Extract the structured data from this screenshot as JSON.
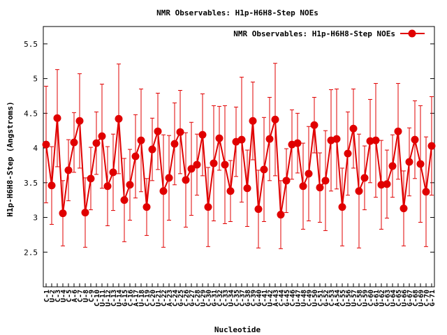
{
  "chart_data": {
    "type": "line",
    "title": "NMR Observables: H1p-H6H8-Step NOEs",
    "xlabel": "Nucleotide",
    "ylabel": "H1p-H6H8-Step (Angstroms)",
    "legend": {
      "label": "NMR Observables: H1p-H6H8-Step NOEs",
      "position": "top-right"
    },
    "ylim": [
      2.0,
      5.75
    ],
    "yticks": [
      2.5,
      3,
      3.5,
      4,
      4.5,
      5,
      5.5
    ],
    "ytick_labels": [
      "2.5",
      "3",
      "3.5",
      "4",
      "4.5",
      "5",
      "5.5"
    ],
    "grid": false,
    "color": "#e00000",
    "categories": [
      "C-1",
      "U-2",
      "C-3",
      "U-4",
      "C-5",
      "A-6",
      "C-7",
      "U-8",
      "C-9",
      "C-10",
      "U-11",
      "U-12",
      "C-13",
      "U-14",
      "G-15",
      "C-16",
      "A-17",
      "U-18",
      "C-19",
      "C-20",
      "U-21",
      "C-22",
      "A-23",
      "C-24",
      "G-25",
      "C-26",
      "G-27",
      "C-28",
      "U-29",
      "C-30",
      "G-31",
      "C-32",
      "C-33",
      "U-34",
      "C-35",
      "C-37",
      "G-38",
      "C-39",
      "G-40",
      "C-41",
      "U-42",
      "A-43",
      "C-44",
      "G-45",
      "C-46",
      "U-47",
      "U-48",
      "C-49",
      "U-50",
      "C-51",
      "G-52",
      "C-53",
      "A-54",
      "C-55",
      "U-56",
      "U-57",
      "C-58",
      "U-59",
      "C-60",
      "G-61",
      "U-62",
      "C-63",
      "U-64",
      "C-65",
      "U-66",
      "G-67",
      "C-68",
      "U-69",
      "C-70",
      "G-71"
    ],
    "series": [
      {
        "values": [
          4.05,
          3.46,
          4.43,
          3.06,
          3.68,
          4.08,
          4.39,
          3.07,
          3.56,
          4.07,
          4.17,
          3.45,
          3.65,
          4.42,
          3.25,
          3.47,
          3.88,
          4.11,
          3.15,
          3.98,
          4.24,
          3.38,
          3.57,
          4.06,
          4.23,
          3.54,
          3.7,
          3.76,
          4.19,
          3.15,
          3.78,
          4.14,
          3.76,
          3.38,
          4.09,
          4.12,
          3.42,
          4.39,
          3.12,
          3.69,
          4.13,
          4.41,
          3.04,
          3.53,
          4.05,
          4.07,
          3.45,
          3.63,
          4.33,
          3.43,
          3.53,
          4.11,
          4.13,
          3.15,
          3.92,
          4.28,
          3.38,
          3.57,
          4.1,
          4.11,
          3.47,
          3.48,
          3.74,
          4.24,
          3.13,
          3.8,
          4.12,
          3.77,
          3.37,
          4.03
        ],
        "errors": [
          0.84,
          0.56,
          0.7,
          0.47,
          0.44,
          0.43,
          0.68,
          0.5,
          0.45,
          0.45,
          0.75,
          0.57,
          0.55,
          0.79,
          0.6,
          0.51,
          0.6,
          0.74,
          0.41,
          0.45,
          0.55,
          0.81,
          0.61,
          0.59,
          0.6,
          0.68,
          0.67,
          0.44,
          0.59,
          0.57,
          0.83,
          0.46,
          0.85,
          0.44,
          0.5,
          0.9,
          0.55,
          0.56,
          0.56,
          0.75,
          0.6,
          0.81,
          0.49,
          0.46,
          0.5,
          0.43,
          0.62,
          0.68,
          0.4,
          0.5,
          0.72,
          0.73,
          0.72,
          0.56,
          0.6,
          0.57,
          0.82,
          0.46,
          0.6,
          0.82,
          0.64,
          0.49,
          0.45,
          0.69,
          0.54,
          0.49,
          0.56,
          0.84,
          0.79,
          0.71
        ]
      }
    ]
  }
}
